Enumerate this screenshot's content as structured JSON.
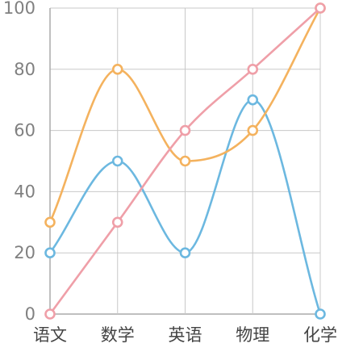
{
  "chart_data": {
    "type": "line",
    "categories": [
      "语文",
      "数学",
      "英语",
      "物理",
      "化学"
    ],
    "ylim": [
      0,
      100
    ],
    "yticks": [
      0,
      20,
      40,
      60,
      80,
      100
    ],
    "grid": true,
    "smooth": true,
    "series": [
      {
        "color": "#6cb8e0",
        "values": [
          20,
          50,
          20,
          70,
          0
        ]
      },
      {
        "color": "#f4b25e",
        "values": [
          30,
          80,
          50,
          60,
          100
        ]
      },
      {
        "color": "#ef9fa8",
        "values": [
          0,
          30,
          60,
          80,
          100
        ]
      }
    ]
  }
}
